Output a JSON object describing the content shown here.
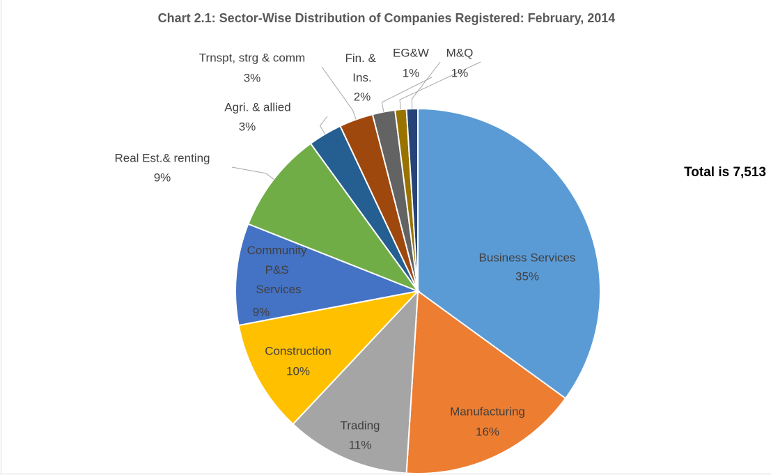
{
  "chart_data": {
    "type": "pie",
    "title": "Chart 2.1: Sector-Wise Distribution of Companies Registered: February, 2014",
    "annotation": "Total is 7,513",
    "categories": [
      "Business Services",
      "Manufacturing",
      "Trading",
      "Construction",
      "Community P&S Services",
      "Real Est.& renting",
      "Agri. & allied",
      "Trnspt, strg & comm",
      "Fin. & Ins.",
      "EG&W",
      "M&Q"
    ],
    "values": [
      35,
      16,
      11,
      10,
      9,
      9,
      3,
      3,
      2,
      1,
      1
    ],
    "value_labels": [
      "35%",
      "16%",
      "11%",
      "10%",
      "9%",
      "9%",
      "3%",
      "3%",
      "2%",
      "1%",
      "1%"
    ],
    "colors": [
      "#5b9bd5",
      "#ed7d31",
      "#a5a5a5",
      "#ffc000",
      "#4472c4",
      "#70ad47",
      "#255e91",
      "#9e480e",
      "#636363",
      "#997300",
      "#264478"
    ]
  }
}
